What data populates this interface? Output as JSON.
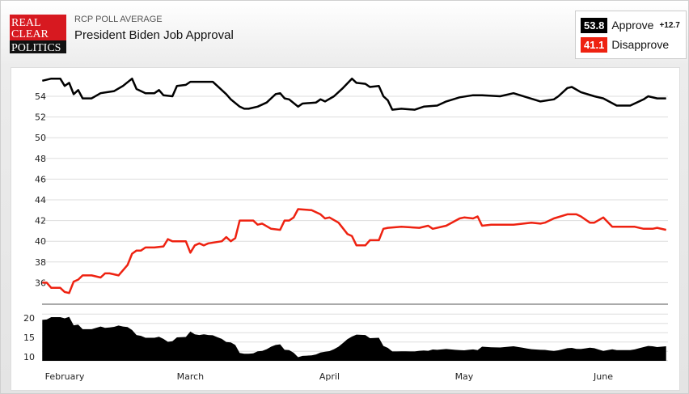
{
  "header": {
    "logo_text": [
      "REAL",
      "CLEAR",
      "POLITICS"
    ],
    "kicker": "RCP POLL AVERAGE",
    "title": "President Biden Job Approval"
  },
  "legend": {
    "approve_value": "53.8",
    "approve_label": "Approve",
    "spread": "+12.7",
    "disapprove_value": "41.1",
    "disapprove_label": "Disapprove"
  },
  "colors": {
    "approve": "#000000",
    "disapprove": "#ee2211",
    "spread": "#000000"
  },
  "chart_data": {
    "type": "line",
    "year": 2021,
    "ylim": [
      34,
      56
    ],
    "yticks": [
      36,
      38,
      40,
      42,
      44,
      46,
      48,
      50,
      52,
      54
    ],
    "spread_ylim": [
      9,
      22
    ],
    "spread_yticks": [
      10,
      15,
      20
    ],
    "xticks": [
      {
        "date": "02-01",
        "label": "February"
      },
      {
        "date": "03-01",
        "label": "March"
      },
      {
        "date": "04-01",
        "label": "April"
      },
      {
        "date": "05-01",
        "label": "May"
      },
      {
        "date": "06-01",
        "label": "June"
      }
    ],
    "grid": true,
    "series": [
      {
        "name": "Approve",
        "color": "#000000",
        "points": [
          [
            "01-27",
            55.5
          ],
          [
            "01-29",
            55.7
          ],
          [
            "01-31",
            55.7
          ],
          [
            "02-01",
            55.0
          ],
          [
            "02-02",
            55.3
          ],
          [
            "02-03",
            54.2
          ],
          [
            "02-04",
            54.6
          ],
          [
            "02-05",
            53.8
          ],
          [
            "02-07",
            53.8
          ],
          [
            "02-09",
            54.3
          ],
          [
            "02-12",
            54.5
          ],
          [
            "02-14",
            55.0
          ],
          [
            "02-16",
            55.7
          ],
          [
            "02-17",
            54.7
          ],
          [
            "02-19",
            54.3
          ],
          [
            "02-21",
            54.3
          ],
          [
            "02-22",
            54.6
          ],
          [
            "02-23",
            54.1
          ],
          [
            "02-25",
            54.0
          ],
          [
            "02-26",
            55.0
          ],
          [
            "02-28",
            55.1
          ],
          [
            "03-01",
            55.4
          ],
          [
            "03-06",
            55.4
          ],
          [
            "03-07",
            55.0
          ],
          [
            "03-09",
            54.2
          ],
          [
            "03-10",
            53.7
          ],
          [
            "03-12",
            53.0
          ],
          [
            "03-13",
            52.8
          ],
          [
            "03-14",
            52.8
          ],
          [
            "03-16",
            53.0
          ],
          [
            "03-18",
            53.4
          ],
          [
            "03-20",
            54.2
          ],
          [
            "03-21",
            54.3
          ],
          [
            "03-22",
            53.8
          ],
          [
            "03-23",
            53.7
          ],
          [
            "03-25",
            53.0
          ],
          [
            "03-26",
            53.3
          ],
          [
            "03-29",
            53.4
          ],
          [
            "03-30",
            53.7
          ],
          [
            "03-31",
            53.5
          ],
          [
            "04-02",
            54.0
          ],
          [
            "04-04",
            54.8
          ],
          [
            "04-06",
            55.7
          ],
          [
            "04-07",
            55.3
          ],
          [
            "04-09",
            55.2
          ],
          [
            "04-10",
            54.9
          ],
          [
            "04-12",
            55.0
          ],
          [
            "04-13",
            54.0
          ],
          [
            "04-14",
            53.6
          ],
          [
            "04-15",
            52.7
          ],
          [
            "04-17",
            52.8
          ],
          [
            "04-20",
            52.7
          ],
          [
            "04-22",
            53.0
          ],
          [
            "04-25",
            53.1
          ],
          [
            "04-27",
            53.5
          ],
          [
            "04-30",
            53.9
          ],
          [
            "05-03",
            54.1
          ],
          [
            "05-05",
            54.1
          ],
          [
            "05-09",
            54.0
          ],
          [
            "05-12",
            54.3
          ],
          [
            "05-15",
            53.9
          ],
          [
            "05-18",
            53.5
          ],
          [
            "05-21",
            53.7
          ],
          [
            "05-22",
            54.0
          ],
          [
            "05-24",
            54.8
          ],
          [
            "05-25",
            54.9
          ],
          [
            "05-27",
            54.4
          ],
          [
            "05-30",
            54.0
          ],
          [
            "06-01",
            53.8
          ],
          [
            "06-04",
            53.1
          ],
          [
            "06-07",
            53.1
          ],
          [
            "06-10",
            53.7
          ],
          [
            "06-11",
            54.0
          ],
          [
            "06-13",
            53.8
          ],
          [
            "06-15",
            53.8
          ]
        ]
      },
      {
        "name": "Disapprove",
        "color": "#ee2211",
        "points": [
          [
            "01-27",
            36.0
          ],
          [
            "01-28",
            36.0
          ],
          [
            "01-29",
            35.5
          ],
          [
            "01-31",
            35.5
          ],
          [
            "02-01",
            35.1
          ],
          [
            "02-02",
            35.0
          ],
          [
            "02-03",
            36.1
          ],
          [
            "02-04",
            36.3
          ],
          [
            "02-05",
            36.7
          ],
          [
            "02-07",
            36.7
          ],
          [
            "02-09",
            36.5
          ],
          [
            "02-10",
            36.9
          ],
          [
            "02-11",
            36.9
          ],
          [
            "02-13",
            36.7
          ],
          [
            "02-15",
            37.7
          ],
          [
            "02-16",
            38.8
          ],
          [
            "02-17",
            39.1
          ],
          [
            "02-18",
            39.1
          ],
          [
            "02-19",
            39.4
          ],
          [
            "02-21",
            39.4
          ],
          [
            "02-23",
            39.5
          ],
          [
            "02-24",
            40.2
          ],
          [
            "02-25",
            40.0
          ],
          [
            "02-28",
            40.0
          ],
          [
            "03-01",
            38.9
          ],
          [
            "03-02",
            39.6
          ],
          [
            "03-03",
            39.8
          ],
          [
            "03-04",
            39.6
          ],
          [
            "03-05",
            39.8
          ],
          [
            "03-08",
            40.0
          ],
          [
            "03-09",
            40.4
          ],
          [
            "03-10",
            40.0
          ],
          [
            "03-11",
            40.3
          ],
          [
            "03-12",
            42.0
          ],
          [
            "03-15",
            42.0
          ],
          [
            "03-16",
            41.6
          ],
          [
            "03-17",
            41.7
          ],
          [
            "03-19",
            41.2
          ],
          [
            "03-21",
            41.1
          ],
          [
            "03-22",
            42.0
          ],
          [
            "03-23",
            42.0
          ],
          [
            "03-24",
            42.3
          ],
          [
            "03-25",
            43.1
          ],
          [
            "03-28",
            43.0
          ],
          [
            "03-30",
            42.6
          ],
          [
            "03-31",
            42.2
          ],
          [
            "04-01",
            42.3
          ],
          [
            "04-03",
            41.8
          ],
          [
            "04-05",
            40.7
          ],
          [
            "04-06",
            40.5
          ],
          [
            "04-07",
            39.6
          ],
          [
            "04-09",
            39.6
          ],
          [
            "04-10",
            40.1
          ],
          [
            "04-12",
            40.1
          ],
          [
            "04-13",
            41.2
          ],
          [
            "04-14",
            41.3
          ],
          [
            "04-17",
            41.4
          ],
          [
            "04-21",
            41.3
          ],
          [
            "04-23",
            41.5
          ],
          [
            "04-24",
            41.2
          ],
          [
            "04-27",
            41.5
          ],
          [
            "04-30",
            42.2
          ],
          [
            "05-01",
            42.3
          ],
          [
            "05-03",
            42.2
          ],
          [
            "05-04",
            42.4
          ],
          [
            "05-05",
            41.5
          ],
          [
            "05-07",
            41.6
          ],
          [
            "05-09",
            41.6
          ],
          [
            "05-12",
            41.6
          ],
          [
            "05-16",
            41.8
          ],
          [
            "05-18",
            41.7
          ],
          [
            "05-19",
            41.8
          ],
          [
            "05-21",
            42.2
          ],
          [
            "05-24",
            42.6
          ],
          [
            "05-26",
            42.6
          ],
          [
            "05-27",
            42.4
          ],
          [
            "05-29",
            41.8
          ],
          [
            "05-30",
            41.8
          ],
          [
            "06-01",
            42.3
          ],
          [
            "06-03",
            41.4
          ],
          [
            "06-08",
            41.4
          ],
          [
            "06-10",
            41.2
          ],
          [
            "06-12",
            41.2
          ],
          [
            "06-13",
            41.3
          ],
          [
            "06-15",
            41.1
          ]
        ]
      }
    ]
  }
}
